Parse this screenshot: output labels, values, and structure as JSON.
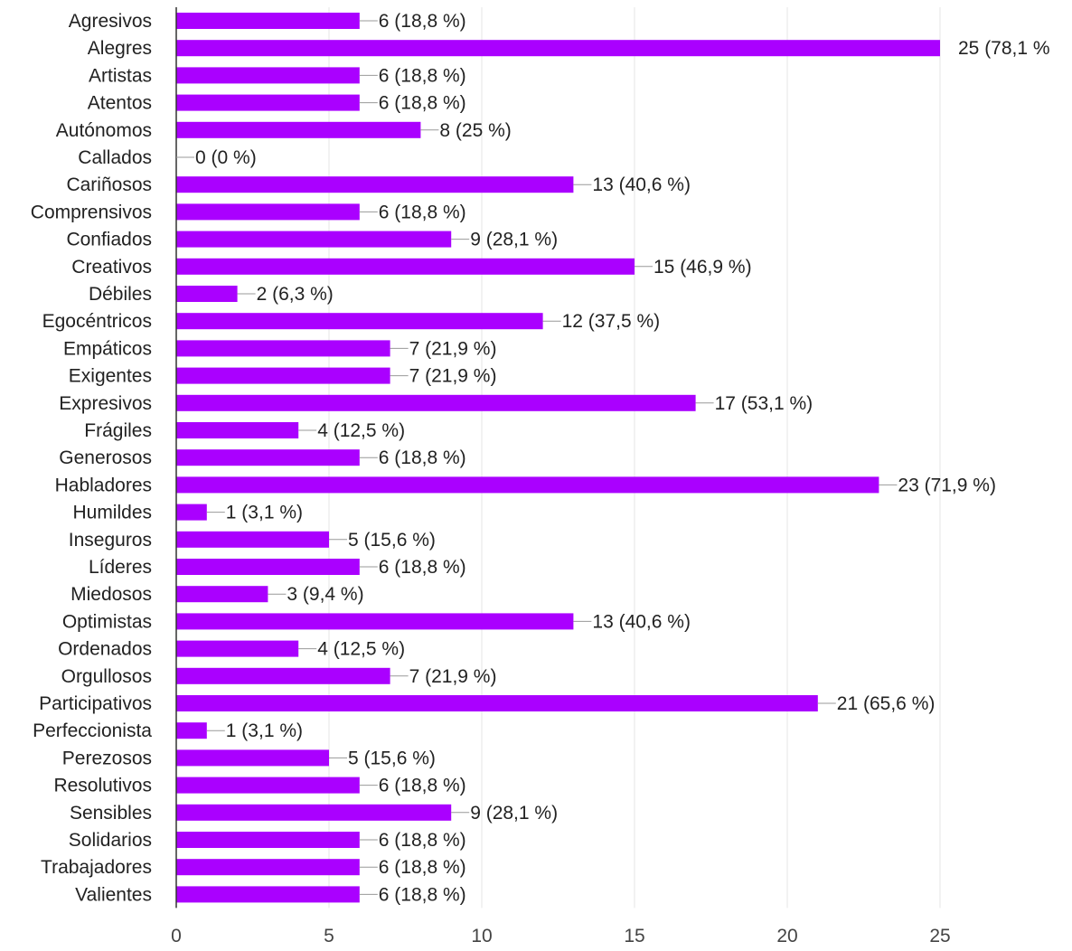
{
  "chart_data": {
    "type": "bar",
    "orientation": "horizontal",
    "categories": [
      "Agresivos",
      "Alegres",
      "Artistas",
      "Atentos",
      "Autónomos",
      "Callados",
      "Cariñosos",
      "Comprensivos",
      "Confiados",
      "Creativos",
      "Débiles",
      "Egocéntricos",
      "Empáticos",
      "Exigentes",
      "Expresivos",
      "Frágiles",
      "Generosos",
      "Habladores",
      "Humildes",
      "Inseguros",
      "Líderes",
      "Miedosos",
      "Optimistas",
      "Ordenados",
      "Orgullosos",
      "Participativos",
      "Perfeccionista",
      "Perezosos",
      "Resolutivos",
      "Sensibles",
      "Solidarios",
      "Trabajadores",
      "Valientes"
    ],
    "values": [
      6,
      25,
      6,
      6,
      8,
      0,
      13,
      6,
      9,
      15,
      2,
      12,
      7,
      7,
      17,
      4,
      6,
      23,
      1,
      5,
      6,
      3,
      13,
      4,
      7,
      21,
      1,
      5,
      6,
      9,
      6,
      6,
      6
    ],
    "value_labels": [
      "6 (18,8 %)",
      "25 (78,1 %",
      "6 (18,8 %)",
      "6 (18,8 %)",
      "8 (25 %)",
      "0 (0 %)",
      "13 (40,6 %)",
      "6 (18,8 %)",
      "9 (28,1 %)",
      "15 (46,9 %)",
      "2 (6,3 %)",
      "12 (37,5 %)",
      "7 (21,9 %)",
      "7 (21,9 %)",
      "17 (53,1 %)",
      "4 (12,5 %)",
      "6 (18,8 %)",
      "23 (71,9 %)",
      "1 (3,1 %)",
      "5 (15,6 %)",
      "6 (18,8 %)",
      "3 (9,4 %)",
      "13 (40,6 %)",
      "4 (12,5 %)",
      "7 (21,9 %)",
      "21 (65,6 %)",
      "1 (3,1 %)",
      "5 (15,6 %)",
      "6 (18,8 %)",
      "9 (28,1 %)",
      "6 (18,8 %)",
      "6 (18,8 %)",
      "6 (18,8 %)"
    ],
    "xticks": [
      "0",
      "5",
      "10",
      "15",
      "20",
      "25"
    ],
    "xlim": [
      0,
      25
    ],
    "grid": true,
    "legend": "none",
    "bar_color": "#aa00ff",
    "grid_color": "#e6e6e6",
    "axis_color": "#333333"
  }
}
